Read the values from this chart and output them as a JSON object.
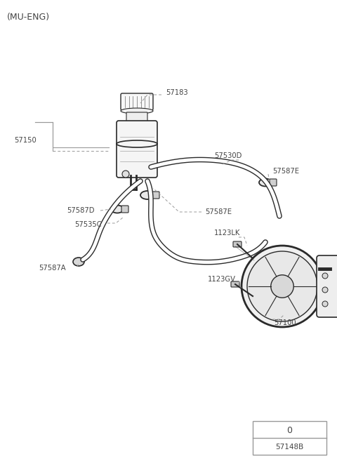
{
  "title": "(MU-ENG)",
  "bg_color": "#ffffff",
  "line_color": "#2a2a2a",
  "text_color": "#444444",
  "dashed_color": "#999999",
  "box_label": "57148B",
  "box_value": "0",
  "figsize": [
    4.8,
    6.64
  ],
  "dpi": 100
}
